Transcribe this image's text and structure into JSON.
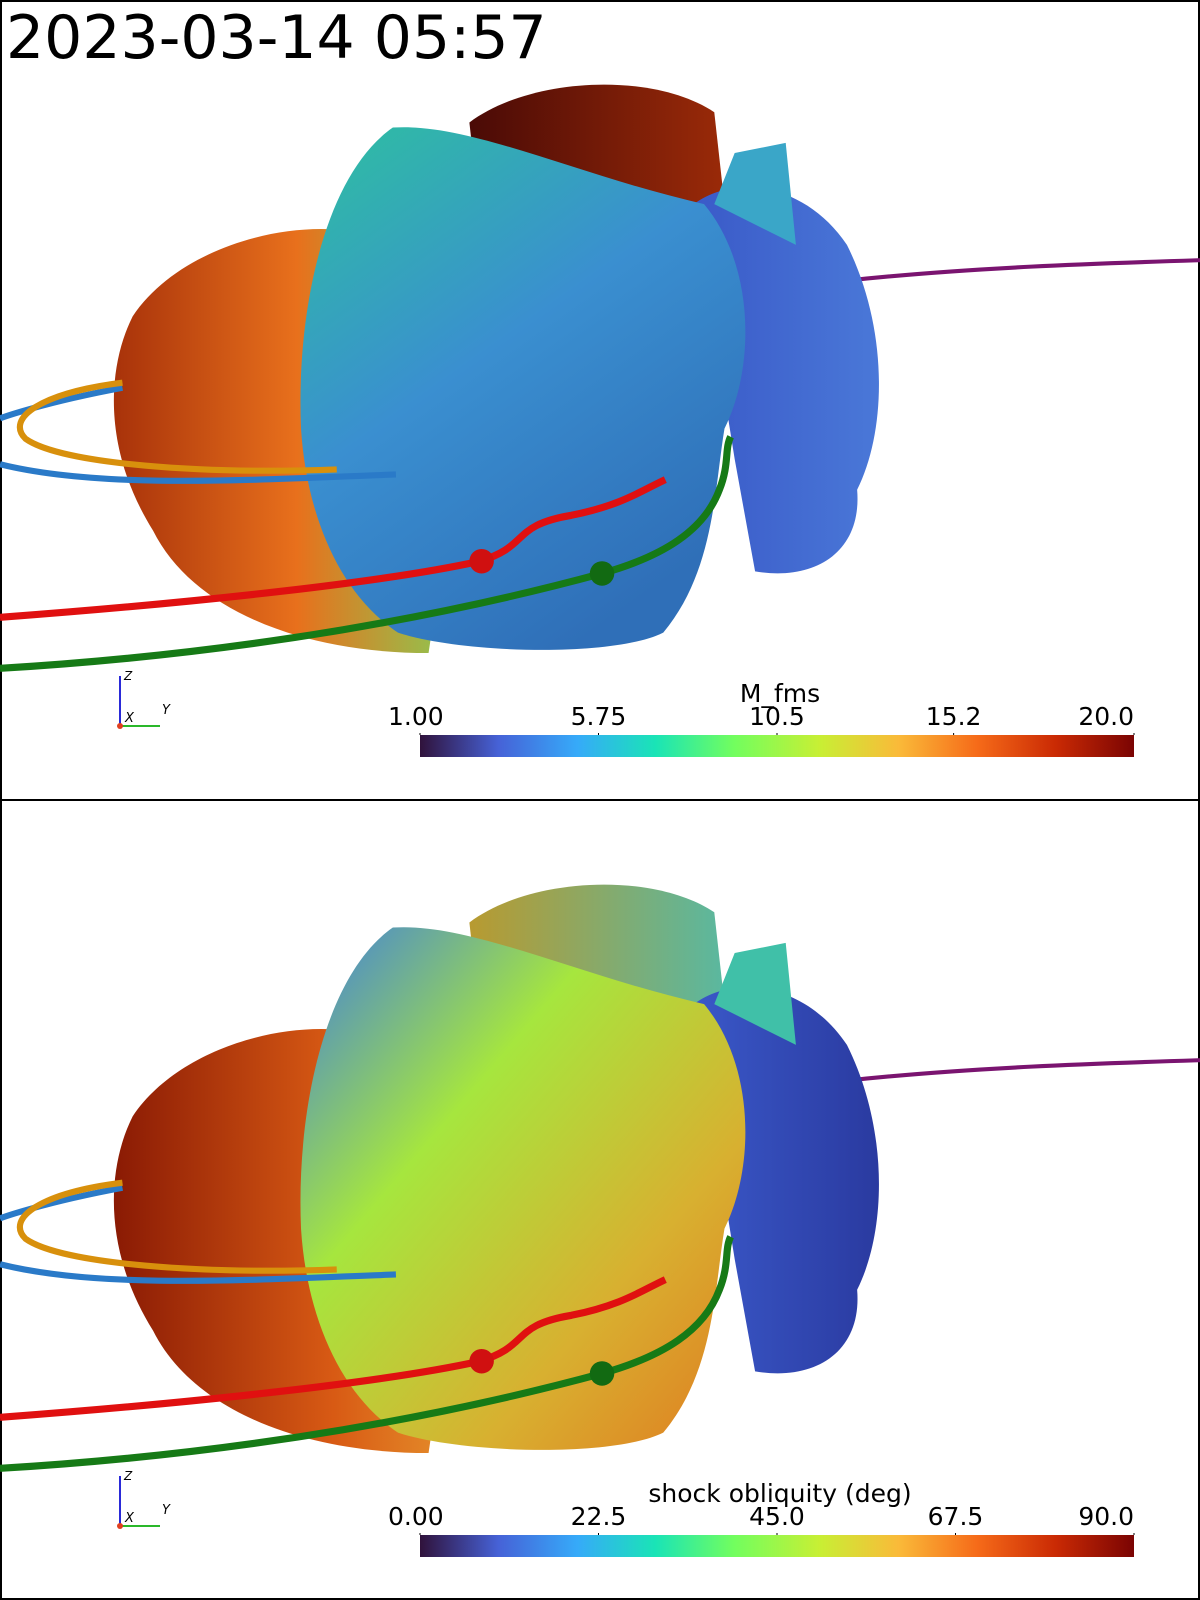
{
  "timestamp": "2023-03-14 05:57",
  "panels": [
    {
      "colorbar": {
        "title": "M_fms",
        "range": [
          1,
          20
        ],
        "ticks": [
          {
            "value": 1,
            "label": "1.00"
          },
          5.75,
          10.5,
          15.2,
          {
            "value": 20,
            "label": "20.0"
          }
        ]
      },
      "axes": {
        "z": "Z",
        "x": "X",
        "y": "Y"
      }
    },
    {
      "colorbar": {
        "title": "shock obliquity (deg)",
        "range": [
          0,
          90
        ],
        "ticks": [
          {
            "value": 0,
            "label": "0.00"
          },
          22.5,
          {
            "value": 45,
            "label": "45.0"
          },
          67.5,
          {
            "value": 90,
            "label": "90.0"
          }
        ]
      },
      "axes": {
        "z": "Z",
        "x": "X",
        "y": "Y"
      }
    }
  ]
}
